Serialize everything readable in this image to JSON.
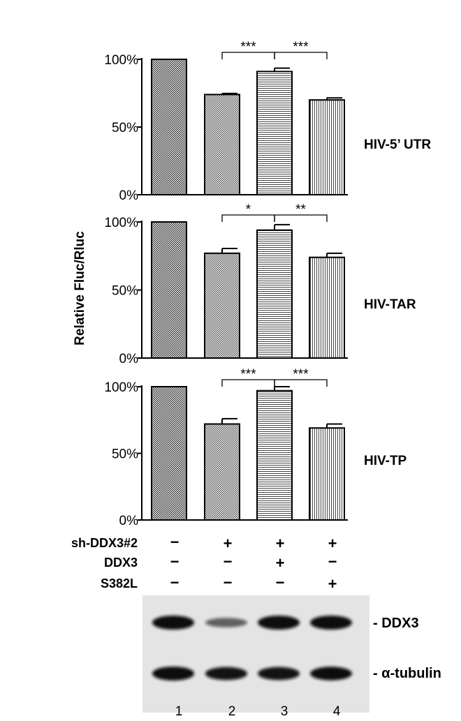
{
  "chart_data": [
    {
      "type": "bar",
      "title": "HIV-5’ UTR",
      "ylabel": "Relative Fluc/Rluc",
      "yticks": [
        "0%",
        "50%",
        "100%"
      ],
      "ylim": [
        0,
        100
      ],
      "lanes": [
        1,
        2,
        3,
        4
      ],
      "values": [
        100,
        74,
        91,
        70
      ],
      "errors": [
        0,
        0.8,
        2.5,
        1.5
      ],
      "significance": [
        {
          "from": 2,
          "to": 3,
          "label": "***"
        },
        {
          "from": 3,
          "to": 4,
          "label": "***"
        }
      ]
    },
    {
      "type": "bar",
      "title": "HIV-TAR",
      "ylabel": "Relative Fluc/Rluc",
      "yticks": [
        "0%",
        "50%",
        "100%"
      ],
      "ylim": [
        0,
        100
      ],
      "lanes": [
        1,
        2,
        3,
        4
      ],
      "values": [
        100,
        77,
        94,
        74
      ],
      "errors": [
        0,
        3.5,
        4,
        3
      ],
      "significance": [
        {
          "from": 2,
          "to": 3,
          "label": "*"
        },
        {
          "from": 3,
          "to": 4,
          "label": "**"
        }
      ]
    },
    {
      "type": "bar",
      "title": "HIV-TP",
      "ylabel": "Relative Fluc/Rluc",
      "yticks": [
        "0%",
        "50%",
        "100%"
      ],
      "ylim": [
        0,
        100
      ],
      "lanes": [
        1,
        2,
        3,
        4
      ],
      "values": [
        100,
        72,
        97,
        69
      ],
      "errors": [
        0,
        4,
        3,
        3
      ],
      "significance": [
        {
          "from": 2,
          "to": 3,
          "label": "***"
        },
        {
          "from": 3,
          "to": 4,
          "label": "***"
        }
      ]
    }
  ],
  "ylabel": "Relative Fluc/Rluc",
  "conditions": [
    {
      "label": "sh-DDX3#2",
      "marks": [
        "−",
        "+",
        "+",
        "+"
      ]
    },
    {
      "label": "DDX3",
      "marks": [
        "−",
        "−",
        "+",
        "−"
      ]
    },
    {
      "label": "S382L",
      "marks": [
        "−",
        "−",
        "−",
        "+"
      ]
    }
  ],
  "blot": {
    "bands": [
      {
        "label": "- DDX3",
        "intensities": [
          1.0,
          0.45,
          1.0,
          1.0
        ]
      },
      {
        "label": "- α-tubulin",
        "intensities": [
          1.0,
          0.9,
          0.9,
          0.95
        ]
      }
    ],
    "lane_numbers": [
      "1",
      "2",
      "3",
      "4"
    ]
  },
  "colors": {
    "bar_stroke": "#000000",
    "band": "#111111",
    "blot_bg": "#e4e4e4"
  }
}
